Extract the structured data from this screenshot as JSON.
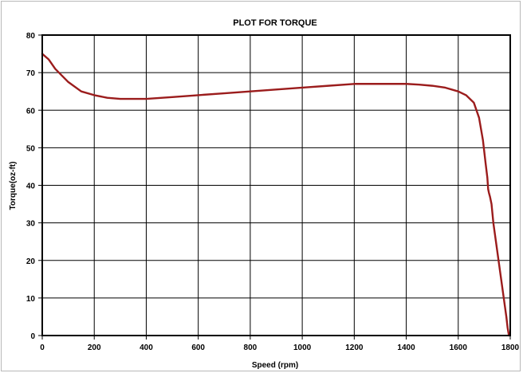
{
  "chart_data": {
    "type": "line",
    "title": "PLOT FOR TORQUE",
    "xlabel": "Speed (rpm)",
    "ylabel": "Torque(oz-ft)",
    "xlim": [
      0,
      1800
    ],
    "ylim": [
      0,
      80
    ],
    "xticks": [
      "0",
      "200",
      "400",
      "600",
      "800",
      "1000",
      "1200",
      "1400",
      "1600",
      "1800"
    ],
    "yticks": [
      "0",
      "10",
      "20",
      "30",
      "40",
      "50",
      "60",
      "70",
      "80"
    ],
    "grid": true,
    "legend": "none",
    "series": [
      {
        "color": "#9b1c1c",
        "x": [
          0,
          25,
          50,
          100,
          150,
          200,
          250,
          300,
          350,
          400,
          500,
          600,
          700,
          800,
          900,
          1000,
          1100,
          1200,
          1300,
          1400,
          1450,
          1500,
          1550,
          1600,
          1630,
          1660,
          1680,
          1695,
          1705,
          1712,
          1715,
          1718,
          1722,
          1728,
          1735,
          1745,
          1755,
          1765,
          1775,
          1785,
          1790,
          1795
        ],
        "y": [
          75,
          73.5,
          71,
          67.5,
          65,
          64,
          63.3,
          63,
          63,
          63,
          63.5,
          64,
          64.5,
          65,
          65.5,
          66,
          66.5,
          67,
          67,
          67,
          66.8,
          66.5,
          66,
          65,
          64,
          62,
          58,
          52,
          46,
          42,
          39,
          38,
          37,
          35,
          30,
          25,
          20,
          15,
          10,
          5,
          2,
          0
        ]
      }
    ]
  }
}
